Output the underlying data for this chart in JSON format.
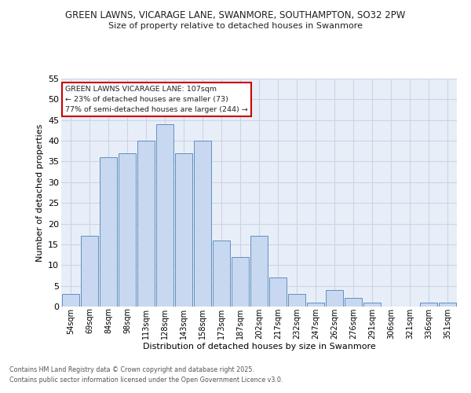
{
  "title_line1": "GREEN LAWNS, VICARAGE LANE, SWANMORE, SOUTHAMPTON, SO32 2PW",
  "title_line2": "Size of property relative to detached houses in Swanmore",
  "xlabel": "Distribution of detached houses by size in Swanmore",
  "ylabel": "Number of detached properties",
  "categories": [
    "54sqm",
    "69sqm",
    "84sqm",
    "98sqm",
    "113sqm",
    "128sqm",
    "143sqm",
    "158sqm",
    "173sqm",
    "187sqm",
    "202sqm",
    "217sqm",
    "232sqm",
    "247sqm",
    "262sqm",
    "276sqm",
    "291sqm",
    "306sqm",
    "321sqm",
    "336sqm",
    "351sqm"
  ],
  "values": [
    3,
    17,
    36,
    37,
    40,
    44,
    37,
    40,
    16,
    12,
    17,
    7,
    3,
    1,
    4,
    2,
    1,
    0,
    0,
    1,
    1
  ],
  "bar_color": "#c8d8f0",
  "bar_edge_color": "#6090c0",
  "grid_color": "#ccd5e5",
  "bg_color": "#e8eef8",
  "ylim": [
    0,
    55
  ],
  "yticks": [
    0,
    5,
    10,
    15,
    20,
    25,
    30,
    35,
    40,
    45,
    50,
    55
  ],
  "annotation_box_text": "GREEN LAWNS VICARAGE LANE: 107sqm\n← 23% of detached houses are smaller (73)\n77% of semi-detached houses are larger (244) →",
  "annotation_box_color": "#cc0000",
  "footer_line1": "Contains HM Land Registry data © Crown copyright and database right 2025.",
  "footer_line2": "Contains public sector information licensed under the Open Government Licence v3.0."
}
